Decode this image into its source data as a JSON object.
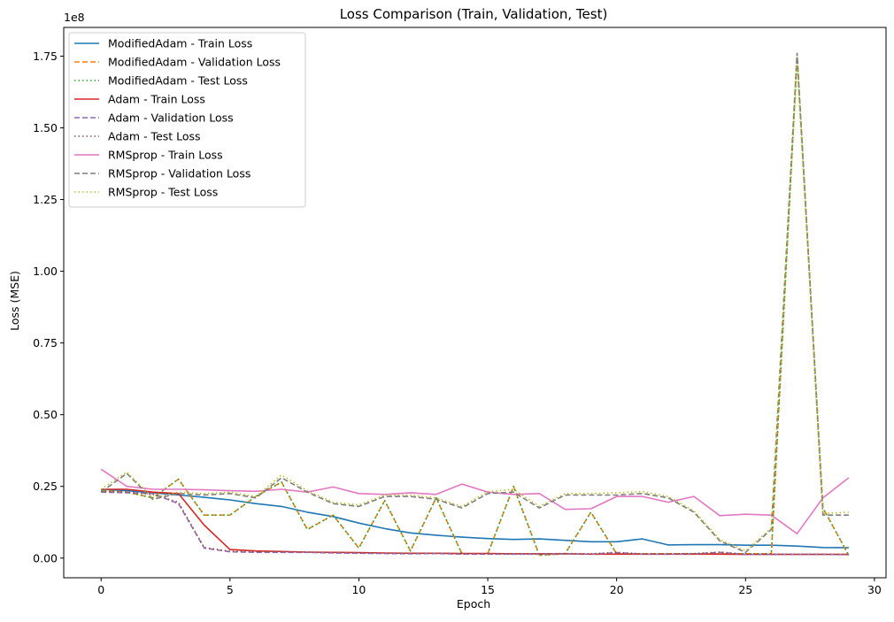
{
  "chart_data": {
    "type": "line",
    "title": "Loss Comparison (Train, Validation, Test)",
    "xlabel": "Epoch",
    "ylabel": "Loss (MSE)",
    "y_scale_label": "1e8",
    "xlim": [
      -1.45,
      30.45
    ],
    "ylim": [
      -0.0685,
      1.85
    ],
    "xticks": [
      0,
      5,
      10,
      15,
      20,
      25,
      30
    ],
    "xtick_labels": [
      "0",
      "5",
      "10",
      "15",
      "20",
      "25",
      "30"
    ],
    "yticks": [
      0,
      0.25,
      0.5,
      0.75,
      1.0,
      1.25,
      1.5,
      1.75
    ],
    "ytick_labels": [
      "0.00",
      "0.25",
      "0.50",
      "0.75",
      "1.00",
      "1.25",
      "1.50",
      "1.75"
    ],
    "grid": false,
    "legend_position": "upper-left",
    "x": [
      0,
      1,
      2,
      3,
      4,
      5,
      6,
      7,
      8,
      9,
      10,
      11,
      12,
      13,
      14,
      15,
      16,
      17,
      18,
      19,
      20,
      21,
      22,
      23,
      24,
      25,
      26,
      27,
      28,
      29
    ],
    "series": [
      {
        "name": "ModifiedAdam - Train Loss",
        "color": "#1f77b4",
        "dash": "solid",
        "values": [
          0.24,
          0.235,
          0.228,
          0.22,
          0.212,
          0.203,
          0.19,
          0.18,
          0.16,
          0.145,
          0.122,
          0.103,
          0.088,
          0.08,
          0.073,
          0.068,
          0.065,
          0.067,
          0.062,
          0.057,
          0.057,
          0.067,
          0.046,
          0.047,
          0.047,
          0.045,
          0.045,
          0.042,
          0.037,
          0.036
        ]
      },
      {
        "name": "ModifiedAdam - Validation Loss",
        "color": "#ff7f0e",
        "dash": "dashed",
        "values": [
          0.235,
          0.23,
          0.21,
          0.275,
          0.15,
          0.15,
          0.215,
          0.265,
          0.1,
          0.15,
          0.035,
          0.2,
          0.025,
          0.21,
          0.015,
          0.015,
          0.25,
          0.01,
          0.015,
          0.16,
          0.015,
          0.015,
          0.015,
          0.015,
          0.015,
          0.015,
          0.015,
          1.75,
          0.175,
          0.01
        ]
      },
      {
        "name": "ModifiedAdam - Test Loss",
        "color": "#2ca02c",
        "dash": "dotted",
        "values": [
          0.235,
          0.23,
          0.21,
          0.275,
          0.15,
          0.15,
          0.215,
          0.265,
          0.1,
          0.15,
          0.035,
          0.2,
          0.025,
          0.21,
          0.015,
          0.015,
          0.25,
          0.01,
          0.015,
          0.16,
          0.015,
          0.015,
          0.015,
          0.015,
          0.015,
          0.015,
          0.015,
          1.75,
          0.175,
          0.01
        ]
      },
      {
        "name": "Adam - Train Loss",
        "color": "#d62728",
        "dash": "solid",
        "values": [
          0.24,
          0.24,
          0.23,
          0.225,
          0.115,
          0.03,
          0.025,
          0.023,
          0.021,
          0.02,
          0.019,
          0.018,
          0.017,
          0.017,
          0.016,
          0.016,
          0.015,
          0.015,
          0.015,
          0.014,
          0.014,
          0.014,
          0.014,
          0.014,
          0.014,
          0.013,
          0.013,
          0.013,
          0.013,
          0.013
        ]
      },
      {
        "name": "Adam - Validation Loss",
        "color": "#9467bd",
        "dash": "dashed",
        "values": [
          0.23,
          0.228,
          0.225,
          0.19,
          0.035,
          0.022,
          0.02,
          0.02,
          0.02,
          0.018,
          0.017,
          0.016,
          0.015,
          0.016,
          0.014,
          0.014,
          0.014,
          0.014,
          0.015,
          0.014,
          0.019,
          0.014,
          0.014,
          0.015,
          0.02,
          0.013,
          0.013,
          0.013,
          0.013,
          0.012
        ]
      },
      {
        "name": "Adam - Test Loss",
        "color": "#8c564b",
        "dash": "dotted",
        "values": [
          0.232,
          0.23,
          0.222,
          0.195,
          0.037,
          0.024,
          0.022,
          0.022,
          0.021,
          0.019,
          0.018,
          0.017,
          0.016,
          0.017,
          0.015,
          0.015,
          0.015,
          0.015,
          0.016,
          0.015,
          0.02,
          0.015,
          0.015,
          0.016,
          0.021,
          0.014,
          0.014,
          0.014,
          0.014,
          0.013
        ]
      },
      {
        "name": "RMSprop - Train Loss",
        "color": "#e377c2",
        "dash": "solid",
        "values": [
          0.31,
          0.25,
          0.24,
          0.24,
          0.238,
          0.235,
          0.233,
          0.24,
          0.23,
          0.248,
          0.225,
          0.222,
          0.228,
          0.222,
          0.258,
          0.23,
          0.222,
          0.225,
          0.17,
          0.172,
          0.215,
          0.215,
          0.195,
          0.215,
          0.148,
          0.153,
          0.15,
          0.085,
          0.21,
          0.28
        ]
      },
      {
        "name": "RMSprop - Validation Loss",
        "color": "#7f7f7f",
        "dash": "dashed",
        "values": [
          0.23,
          0.295,
          0.205,
          0.225,
          0.22,
          0.225,
          0.21,
          0.28,
          0.23,
          0.19,
          0.18,
          0.215,
          0.215,
          0.205,
          0.175,
          0.225,
          0.23,
          0.175,
          0.22,
          0.22,
          0.22,
          0.225,
          0.21,
          0.16,
          0.06,
          0.02,
          0.1,
          1.76,
          0.15,
          0.15
        ]
      },
      {
        "name": "RMSprop - Test Loss",
        "color": "#bcbd22",
        "dash": "dotted",
        "values": [
          0.24,
          0.3,
          0.21,
          0.23,
          0.225,
          0.23,
          0.215,
          0.29,
          0.235,
          0.195,
          0.185,
          0.22,
          0.22,
          0.21,
          0.18,
          0.232,
          0.24,
          0.18,
          0.225,
          0.225,
          0.228,
          0.232,
          0.215,
          0.165,
          0.065,
          0.025,
          0.105,
          1.72,
          0.155,
          0.16
        ]
      }
    ]
  }
}
